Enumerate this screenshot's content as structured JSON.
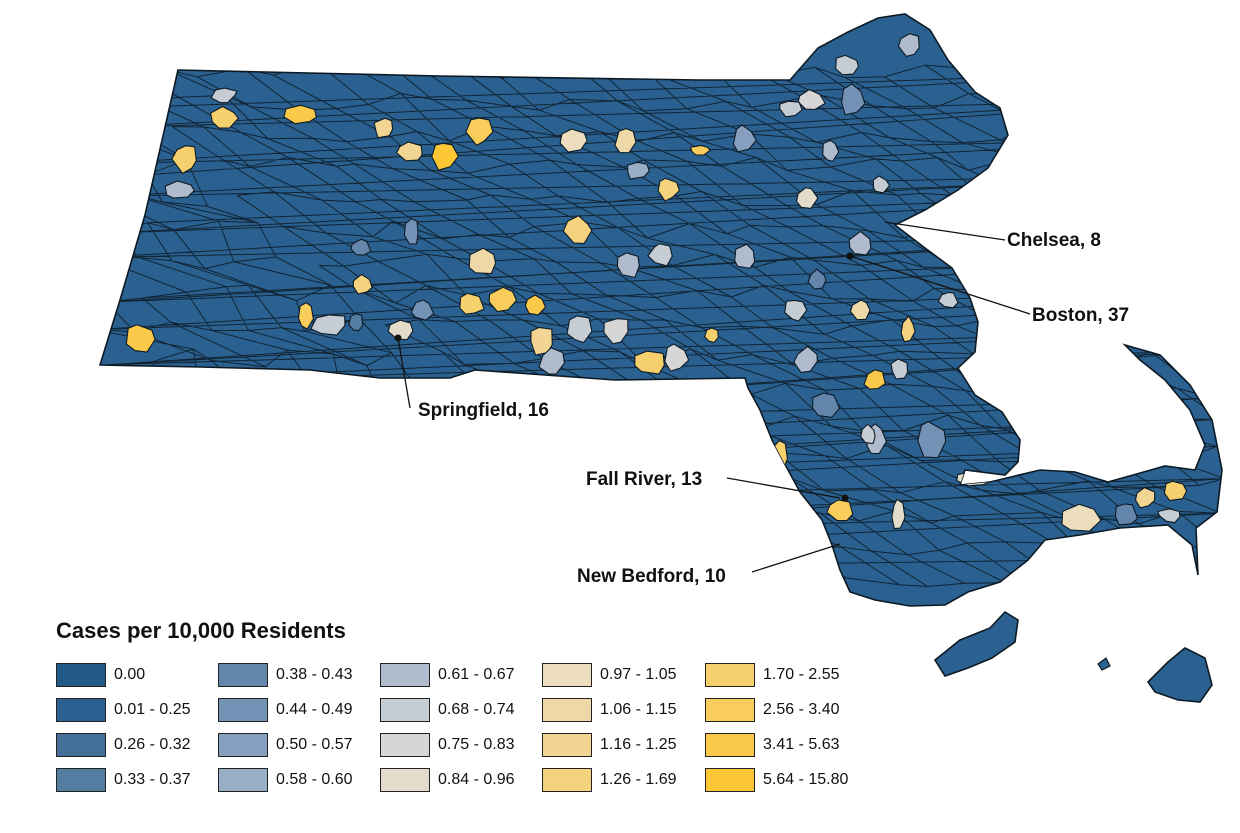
{
  "legend": {
    "title": "Cases per 10,000 Residents",
    "classes": [
      {
        "label": "0.00",
        "color": "#215a87"
      },
      {
        "label": "0.01 - 0.25",
        "color": "#2a6190"
      },
      {
        "label": "0.26 - 0.32",
        "color": "#436f98"
      },
      {
        "label": "0.33 - 0.37",
        "color": "#557ca1"
      },
      {
        "label": "0.38 - 0.43",
        "color": "#6486ab"
      },
      {
        "label": "0.44 - 0.49",
        "color": "#7492b5"
      },
      {
        "label": "0.50 - 0.57",
        "color": "#879fbe"
      },
      {
        "label": "0.58 - 0.60",
        "color": "#9aaec6"
      },
      {
        "label": "0.61 - 0.67",
        "color": "#b0bccd"
      },
      {
        "label": "0.68 - 0.74",
        "color": "#c5ccd4"
      },
      {
        "label": "0.75 - 0.83",
        "color": "#d7d6d4"
      },
      {
        "label": "0.84 - 0.96",
        "color": "#e4dccb"
      },
      {
        "label": "0.97 - 1.05",
        "color": "#ecddbd"
      },
      {
        "label": "1.06 - 1.15",
        "color": "#efd8a7"
      },
      {
        "label": "1.16 - 1.25",
        "color": "#f2d593"
      },
      {
        "label": "1.26 - 1.69",
        "color": "#f5d27e"
      },
      {
        "label": "1.70 - 2.55",
        "color": "#f7d06e"
      },
      {
        "label": "2.56 - 3.40",
        "color": "#f9cd5c"
      },
      {
        "label": "3.41 - 5.63",
        "color": "#fbc94a"
      },
      {
        "label": "5.64 - 15.80",
        "color": "#fdc635"
      }
    ]
  },
  "cities": [
    {
      "label": "Chelsea, 8"
    },
    {
      "label": "Boston, 37"
    },
    {
      "label": "Springfield, 16"
    },
    {
      "label": "Fall River, 13"
    },
    {
      "label": "New Bedford, 10"
    }
  ],
  "colors": {
    "base_fill": "#2a6190",
    "outline": "#0d1a24"
  }
}
